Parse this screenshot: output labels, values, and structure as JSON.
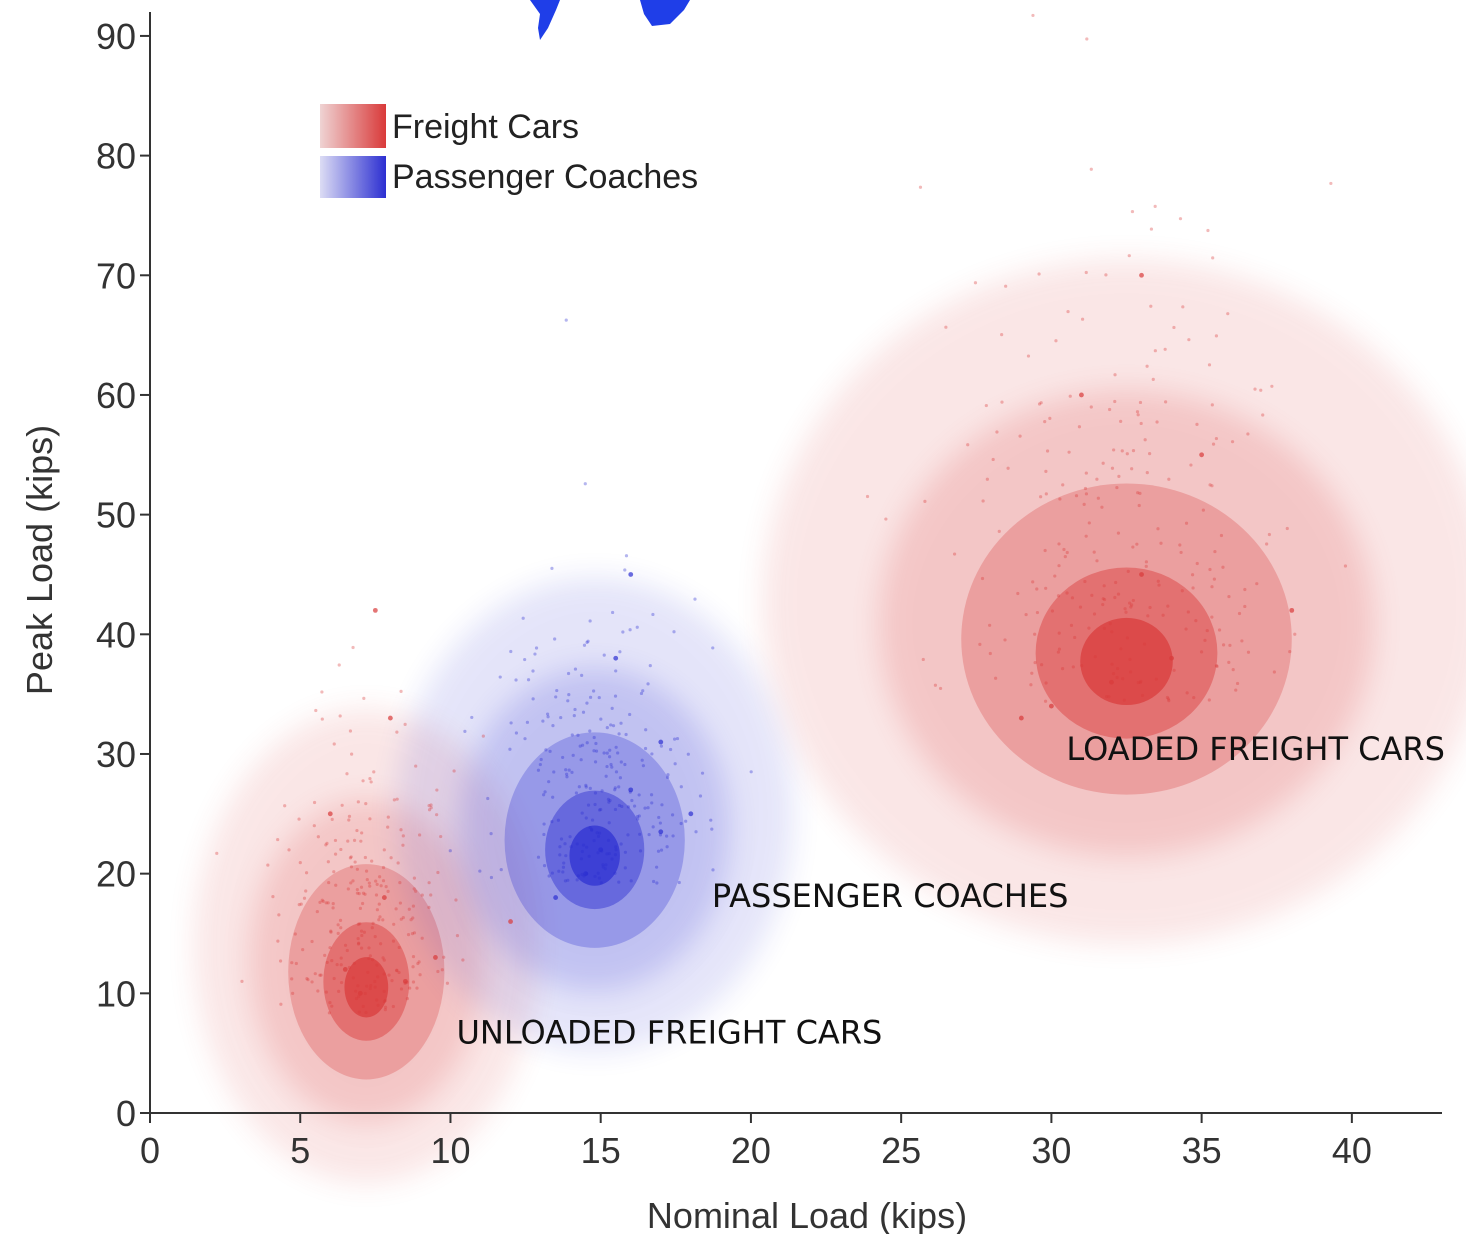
{
  "chart_data": {
    "type": "scatter",
    "xlabel": "Nominal Load (kips)",
    "ylabel": "Peak Load (kips)",
    "xlim": [
      0,
      43
    ],
    "ylim": [
      0,
      92
    ],
    "x_ticks": [
      "0",
      "5",
      "10",
      "15",
      "20",
      "25",
      "30",
      "35",
      "40"
    ],
    "y_ticks": [
      "0",
      "10",
      "20",
      "30",
      "40",
      "50",
      "60",
      "70",
      "80",
      "90"
    ],
    "grid": false,
    "legend_position": "top-left",
    "colors": {
      "freight": "#d93a3a",
      "passenger": "#2c2fd1",
      "title_fragment": "#1f3ee8"
    },
    "series": [
      {
        "name": "Freight Cars",
        "clusters": [
          {
            "center": [
              7.2,
              10
            ],
            "spread_x": 2.6,
            "spread_y": 9,
            "points": [
              [
                7,
                10
              ],
              [
                6.5,
                12
              ],
              [
                8.5,
                11
              ],
              [
                7.8,
                18
              ],
              [
                9.5,
                13
              ],
              [
                6,
                25
              ],
              [
                8,
                33
              ],
              [
                7.5,
                42
              ],
              [
                12,
                16
              ]
            ]
          },
          {
            "center": [
              32.5,
              37
            ],
            "spread_x": 5.5,
            "spread_y": 13,
            "points": [
              [
                32,
                36
              ],
              [
                34,
                38
              ],
              [
                30,
                34
              ],
              [
                33,
                45
              ],
              [
                31,
                60
              ],
              [
                33,
                70
              ],
              [
                35,
                55
              ],
              [
                29,
                33
              ],
              [
                38,
                42
              ]
            ]
          }
        ]
      },
      {
        "name": "Passenger Coaches",
        "clusters": [
          {
            "center": [
              14.8,
              21
            ],
            "spread_x": 3,
            "spread_y": 9,
            "points": [
              [
                14.5,
                20
              ],
              [
                15,
                22
              ],
              [
                17,
                23.5
              ],
              [
                16,
                27
              ],
              [
                13.5,
                18
              ],
              [
                17,
                31
              ],
              [
                15.5,
                38
              ],
              [
                18,
                25
              ],
              [
                16,
                45
              ]
            ]
          }
        ]
      }
    ],
    "annotations": [
      {
        "text": "LOADED FREIGHT CARS",
        "x": 30.5,
        "y": 29.5
      },
      {
        "text": "PASSENGER COACHES",
        "x": 18.7,
        "y": 17.2
      },
      {
        "text": "UNLOADED FREIGHT CARS",
        "x": 10.2,
        "y": 5.8
      }
    ]
  }
}
